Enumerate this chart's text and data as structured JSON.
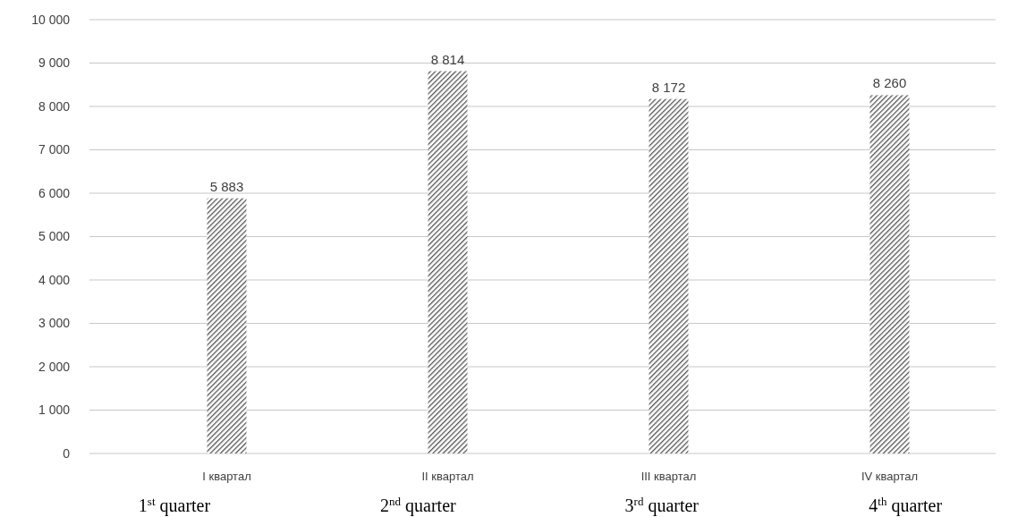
{
  "chart_data": {
    "type": "bar",
    "categories": [
      "I квартал",
      "II квартал",
      "III квартал",
      "IV квартал"
    ],
    "values": [
      5883,
      8814,
      8172,
      8260
    ],
    "value_labels": [
      "5 883",
      "8 814",
      "8 172",
      "8 260"
    ],
    "color": "#555555",
    "ylim": [
      0,
      10000
    ],
    "yticks": [
      0,
      {
        "value": 1000,
        "label": "1 000"
      },
      {
        "value": 2000,
        "label": "2 000"
      },
      {
        "value": 3000,
        "label": "3 000"
      },
      {
        "value": 4000,
        "label": "4 000"
      },
      {
        "value": 5000,
        "label": "5 000"
      },
      {
        "value": 6000,
        "label": "6 000"
      },
      {
        "value": 7000,
        "label": "7 000"
      },
      {
        "value": 8000,
        "label": "8 000"
      },
      {
        "value": 9000,
        "label": "9 000"
      },
      {
        "value": 10000,
        "label": "10 000"
      }
    ],
    "grid": "y",
    "annotations": [
      "1$^{st}$ quarter",
      "2$^{nd}$ quarter",
      "3$^{rd}$ quarter",
      "4$^{th}$ quarter"
    ]
  }
}
